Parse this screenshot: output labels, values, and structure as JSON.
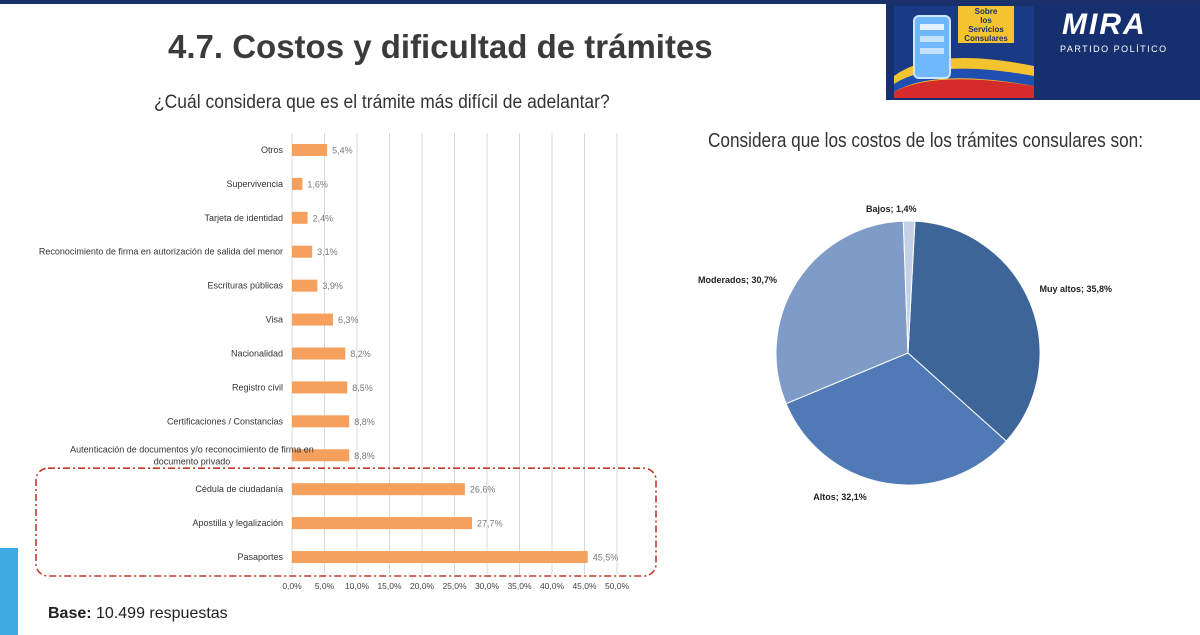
{
  "header": {
    "title": "4.7. Costos y dificultad de trámites",
    "logo_text": "MIRA",
    "logo_subtitle": "PARTIDO POLÍTICO",
    "badge_text": [
      "Sobre",
      "los",
      "Servicios",
      "Consulares"
    ]
  },
  "footer": {
    "base_label": "Base:",
    "base_value": "10.499 respuestas"
  },
  "colors": {
    "bar": "#f5a05c",
    "highlight_box": "#c0392b",
    "pie": [
      "#3d6597",
      "#4f7ab6",
      "#7f9bc8",
      "#c3d0e6"
    ]
  },
  "chart_data": [
    {
      "type": "bar",
      "orientation": "horizontal",
      "title": "¿Cuál considera que es el trámite más difícil de adelantar?",
      "categories": [
        "Otros",
        "Supervivencia",
        "Tarjeta de identidad",
        "Reconocimiento de firma en autorización de salida del menor",
        "Escrituras públicas",
        "Visa",
        "Nacionalidad",
        "Registro civil",
        "Certificaciones / Constancias",
        "Autenticación de documentos y/o reconocimiento de firma en documento privado",
        "Cédula de ciudadanía",
        "Apostilla y legalización",
        "Pasaportes"
      ],
      "values": [
        5.4,
        1.6,
        2.4,
        3.1,
        3.9,
        6.3,
        8.2,
        8.5,
        8.8,
        8.8,
        26.6,
        27.7,
        45.5
      ],
      "data_labels": [
        "5,4%",
        "1,6%",
        "2,4%",
        "3,1%",
        "3,9%",
        "6,3%",
        "8,2%",
        "8,5%",
        "8,8%",
        "8,8%",
        "26,6%",
        "27,7%",
        "45,5%"
      ],
      "xlim": [
        0,
        50
      ],
      "ticks": [
        "0,0%",
        "5,0%",
        "10,0%",
        "15,0%",
        "20,0%",
        "25,0%",
        "30,0%",
        "35,0%",
        "40,0%",
        "45,0%",
        "50,0%"
      ],
      "grid": true,
      "highlighted": [
        "Cédula de ciudadanía",
        "Apostilla y legalización",
        "Pasaportes"
      ]
    },
    {
      "type": "pie",
      "title": "Considera que los costos de los trámites consulares son:",
      "labels": [
        "Muy altos",
        "Altos",
        "Moderados",
        "Bajos"
      ],
      "values": [
        35.8,
        32.1,
        30.7,
        1.4
      ],
      "data_labels": [
        "Muy altos; 35,8%",
        "Altos; 32,1%",
        "Moderados; 30,7%",
        "Bajos; 1,4%"
      ]
    }
  ]
}
